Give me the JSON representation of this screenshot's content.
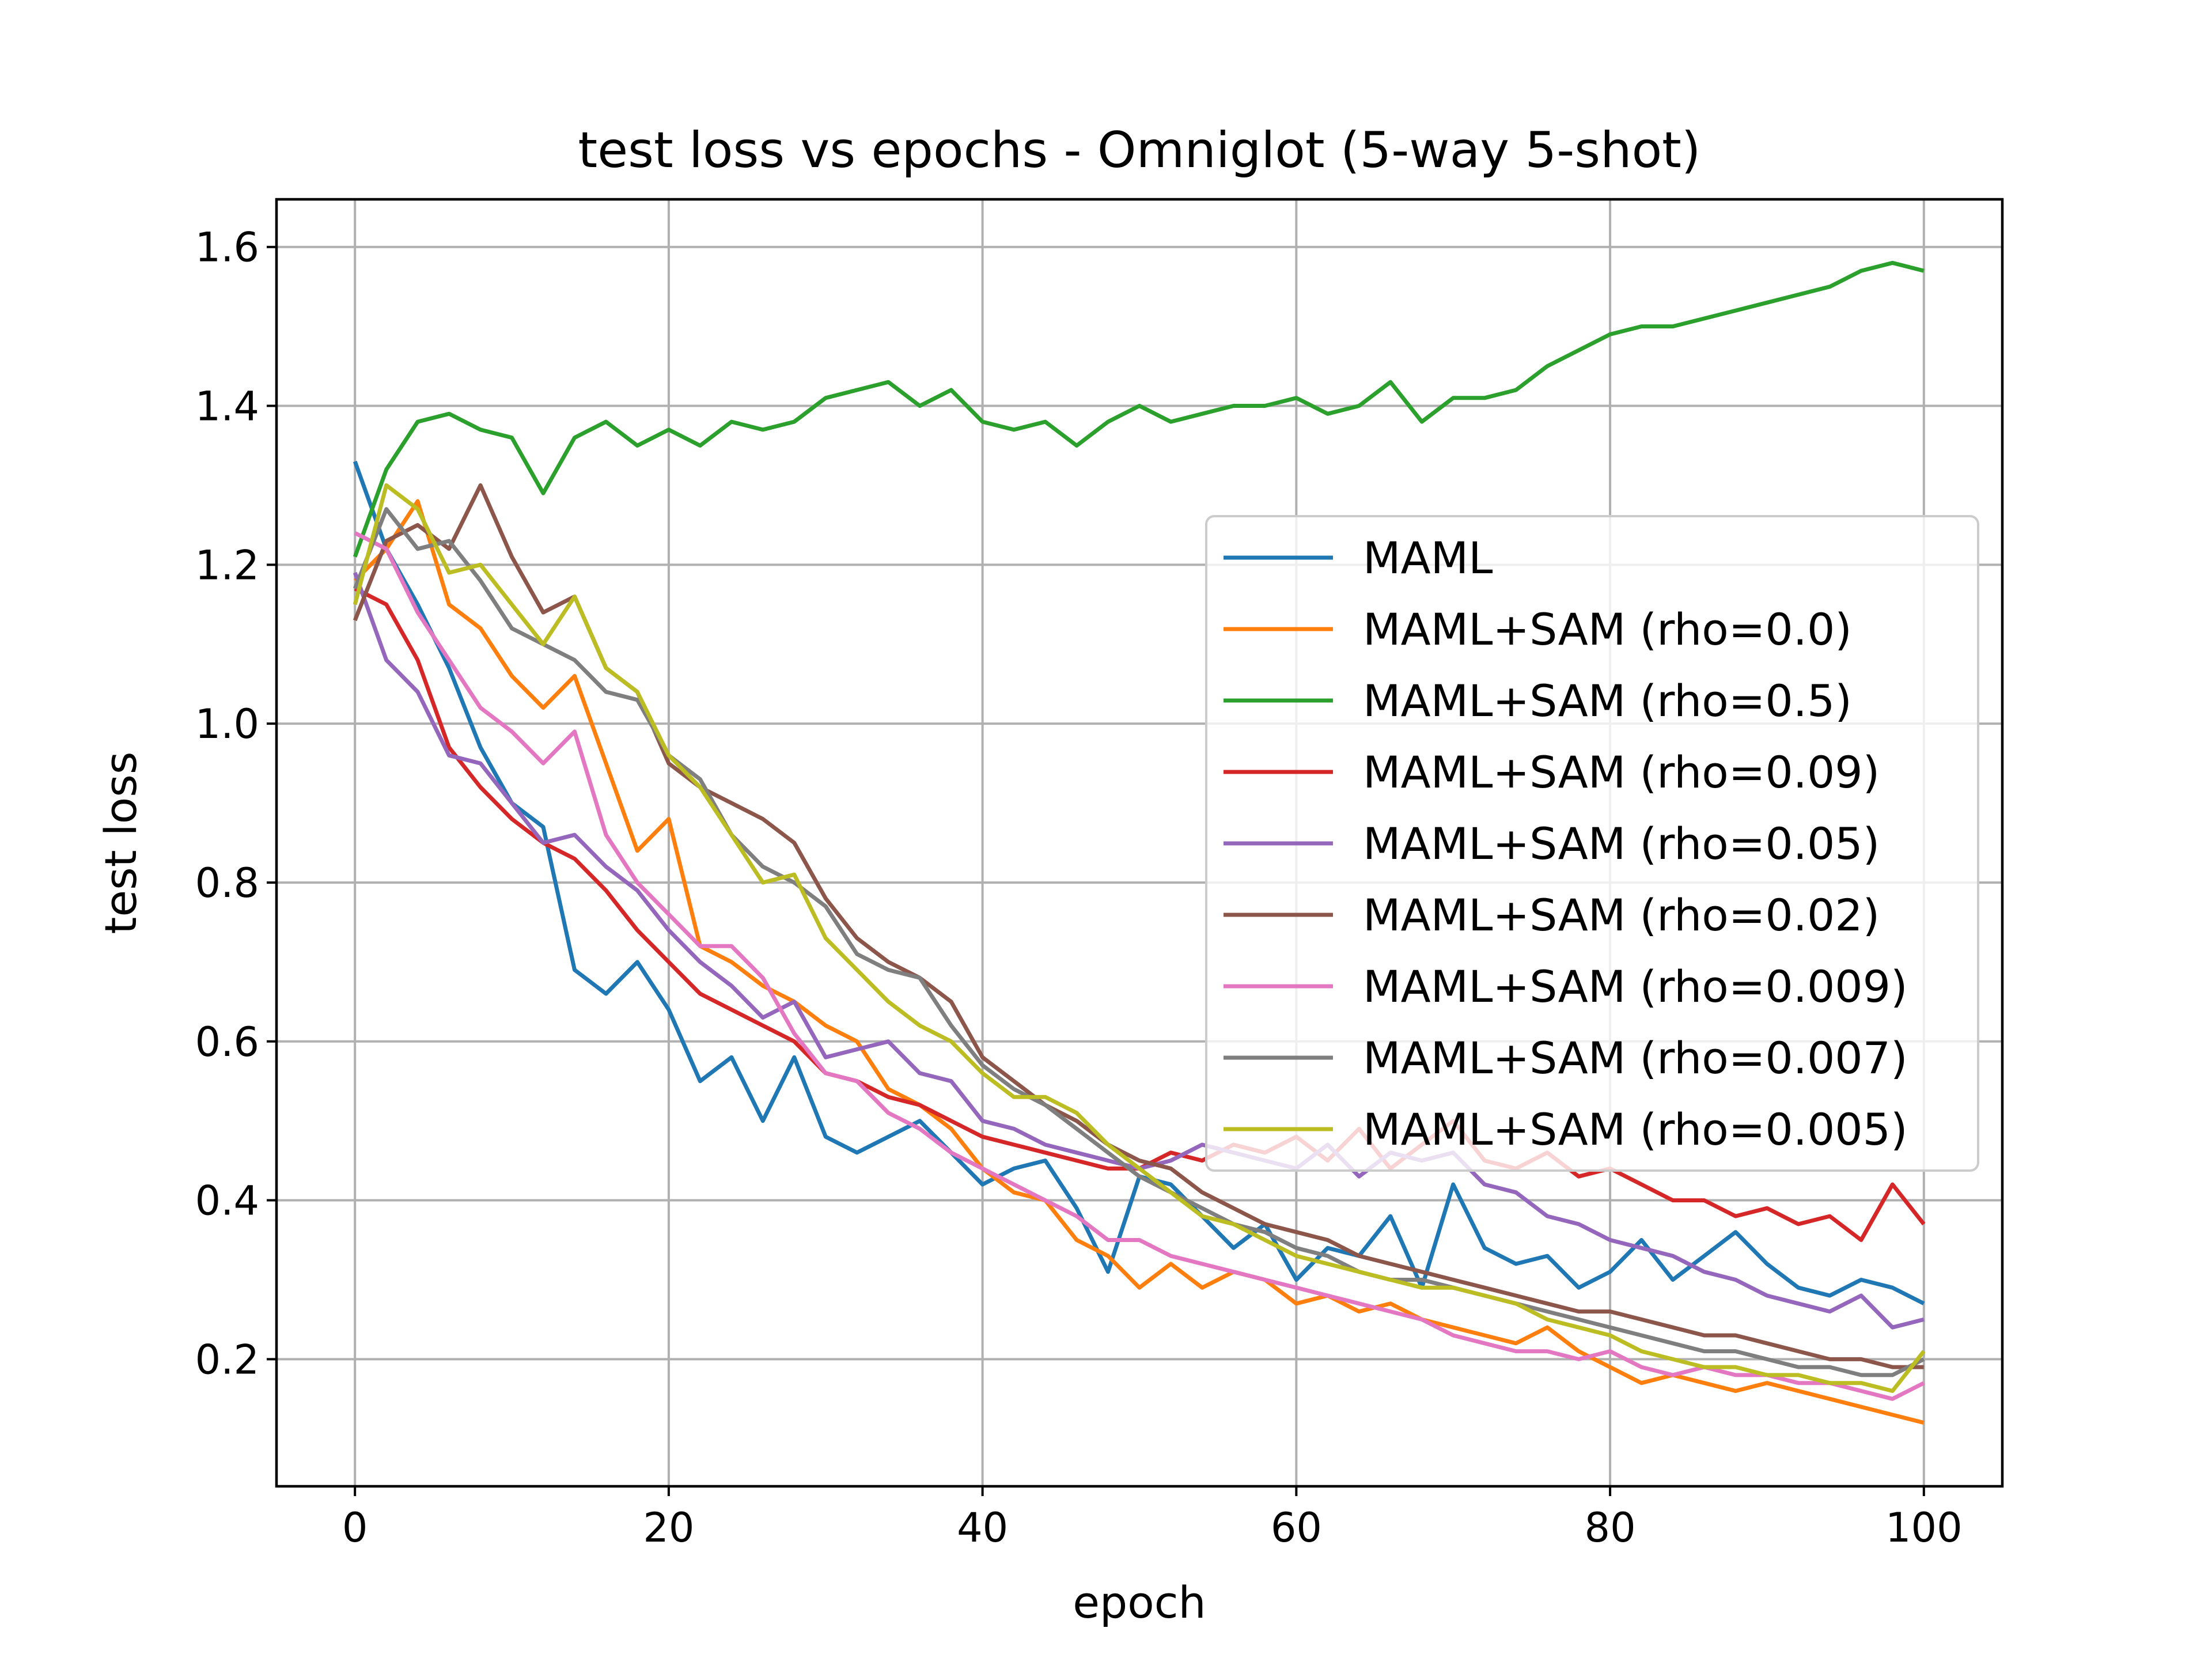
{
  "chart_data": {
    "type": "line",
    "title": "test loss vs epochs - Omniglot (5-way 5-shot)",
    "xlabel": "epoch",
    "ylabel": "test loss",
    "xlim": [
      -5,
      105
    ],
    "ylim": [
      0.04,
      1.66
    ],
    "xticks": [
      0,
      20,
      40,
      60,
      80,
      100
    ],
    "yticks": [
      0.2,
      0.4,
      0.6,
      0.8,
      1.0,
      1.2,
      1.4,
      1.6
    ],
    "xtick_labels": [
      "0",
      "20",
      "40",
      "60",
      "80",
      "100"
    ],
    "ytick_labels": [
      "0.2",
      "0.4",
      "0.6",
      "0.8",
      "1.0",
      "1.2",
      "1.4",
      "1.6"
    ],
    "grid": true,
    "legend_position": "center-right",
    "series": [
      {
        "name": "MAML",
        "color": "#1f77b4",
        "x": [
          0,
          2,
          4,
          6,
          8,
          10,
          12,
          14,
          16,
          18,
          20,
          22,
          24,
          26,
          28,
          30,
          32,
          34,
          36,
          38,
          40,
          42,
          44,
          46,
          48,
          50,
          52,
          54,
          56,
          58,
          60,
          62,
          64,
          66,
          68,
          70,
          72,
          74,
          76,
          78,
          80,
          82,
          84,
          86,
          88,
          90,
          92,
          94,
          96,
          98,
          100
        ],
        "y": [
          1.33,
          1.22,
          1.15,
          1.07,
          0.97,
          0.9,
          0.87,
          0.69,
          0.66,
          0.7,
          0.64,
          0.55,
          0.58,
          0.5,
          0.58,
          0.48,
          0.46,
          0.48,
          0.5,
          0.46,
          0.42,
          0.44,
          0.45,
          0.39,
          0.31,
          0.43,
          0.42,
          0.38,
          0.34,
          0.37,
          0.3,
          0.34,
          0.33,
          0.38,
          0.29,
          0.42,
          0.34,
          0.32,
          0.33,
          0.29,
          0.31,
          0.35,
          0.3,
          0.33,
          0.36,
          0.32,
          0.29,
          0.28,
          0.3,
          0.29,
          0.27
        ]
      },
      {
        "name": "MAML+SAM (rho=0.0)",
        "color": "#ff7f0e",
        "x": [
          0,
          2,
          4,
          6,
          8,
          10,
          12,
          14,
          16,
          18,
          20,
          22,
          24,
          26,
          28,
          30,
          32,
          34,
          36,
          38,
          40,
          42,
          44,
          46,
          48,
          50,
          52,
          54,
          56,
          58,
          60,
          62,
          64,
          66,
          68,
          70,
          72,
          74,
          76,
          78,
          80,
          82,
          84,
          86,
          88,
          90,
          92,
          94,
          96,
          98,
          100
        ],
        "y": [
          1.18,
          1.22,
          1.28,
          1.15,
          1.12,
          1.06,
          1.02,
          1.06,
          0.95,
          0.84,
          0.88,
          0.72,
          0.7,
          0.67,
          0.65,
          0.62,
          0.6,
          0.54,
          0.52,
          0.49,
          0.44,
          0.41,
          0.4,
          0.35,
          0.33,
          0.29,
          0.32,
          0.29,
          0.31,
          0.3,
          0.27,
          0.28,
          0.26,
          0.27,
          0.25,
          0.24,
          0.23,
          0.22,
          0.24,
          0.21,
          0.19,
          0.17,
          0.18,
          0.17,
          0.16,
          0.17,
          0.16,
          0.15,
          0.14,
          0.13,
          0.12
        ]
      },
      {
        "name": "MAML+SAM (rho=0.5)",
        "color": "#2ca02c",
        "x": [
          0,
          2,
          4,
          6,
          8,
          10,
          12,
          14,
          16,
          18,
          20,
          22,
          24,
          26,
          28,
          30,
          32,
          34,
          36,
          38,
          40,
          42,
          44,
          46,
          48,
          50,
          52,
          54,
          56,
          58,
          60,
          62,
          64,
          66,
          68,
          70,
          72,
          74,
          76,
          78,
          80,
          82,
          84,
          86,
          88,
          90,
          92,
          94,
          96,
          98,
          100
        ],
        "y": [
          1.21,
          1.32,
          1.38,
          1.39,
          1.37,
          1.36,
          1.29,
          1.36,
          1.38,
          1.35,
          1.37,
          1.35,
          1.38,
          1.37,
          1.38,
          1.41,
          1.42,
          1.43,
          1.4,
          1.42,
          1.38,
          1.37,
          1.38,
          1.35,
          1.38,
          1.4,
          1.38,
          1.39,
          1.4,
          1.4,
          1.41,
          1.39,
          1.4,
          1.43,
          1.38,
          1.41,
          1.41,
          1.42,
          1.45,
          1.47,
          1.49,
          1.5,
          1.5,
          1.51,
          1.52,
          1.53,
          1.54,
          1.55,
          1.57,
          1.58,
          1.57
        ]
      },
      {
        "name": "MAML+SAM (rho=0.09)",
        "color": "#d62728",
        "x": [
          0,
          2,
          4,
          6,
          8,
          10,
          12,
          14,
          16,
          18,
          20,
          22,
          24,
          26,
          28,
          30,
          32,
          34,
          36,
          38,
          40,
          42,
          44,
          46,
          48,
          50,
          52,
          54,
          56,
          58,
          60,
          62,
          64,
          66,
          68,
          70,
          72,
          74,
          76,
          78,
          80,
          82,
          84,
          86,
          88,
          90,
          92,
          94,
          96,
          98,
          100
        ],
        "y": [
          1.17,
          1.15,
          1.08,
          0.97,
          0.92,
          0.88,
          0.85,
          0.83,
          0.79,
          0.74,
          0.7,
          0.66,
          0.64,
          0.62,
          0.6,
          0.56,
          0.55,
          0.53,
          0.52,
          0.5,
          0.48,
          0.47,
          0.46,
          0.45,
          0.44,
          0.44,
          0.46,
          0.45,
          0.47,
          0.46,
          0.48,
          0.45,
          0.49,
          0.44,
          0.47,
          0.5,
          0.45,
          0.44,
          0.46,
          0.43,
          0.44,
          0.42,
          0.4,
          0.4,
          0.38,
          0.39,
          0.37,
          0.38,
          0.35,
          0.42,
          0.37
        ]
      },
      {
        "name": "MAML+SAM (rho=0.05)",
        "color": "#9467bd",
        "x": [
          0,
          2,
          4,
          6,
          8,
          10,
          12,
          14,
          16,
          18,
          20,
          22,
          24,
          26,
          28,
          30,
          32,
          34,
          36,
          38,
          40,
          42,
          44,
          46,
          48,
          50,
          52,
          54,
          56,
          58,
          60,
          62,
          64,
          66,
          68,
          70,
          72,
          74,
          76,
          78,
          80,
          82,
          84,
          86,
          88,
          90,
          92,
          94,
          96,
          98,
          100
        ],
        "y": [
          1.19,
          1.08,
          1.04,
          0.96,
          0.95,
          0.9,
          0.85,
          0.86,
          0.82,
          0.79,
          0.74,
          0.7,
          0.67,
          0.63,
          0.65,
          0.58,
          0.59,
          0.6,
          0.56,
          0.55,
          0.5,
          0.49,
          0.47,
          0.46,
          0.45,
          0.44,
          0.45,
          0.47,
          0.46,
          0.45,
          0.44,
          0.47,
          0.43,
          0.46,
          0.45,
          0.46,
          0.42,
          0.41,
          0.38,
          0.37,
          0.35,
          0.34,
          0.33,
          0.31,
          0.3,
          0.28,
          0.27,
          0.26,
          0.28,
          0.24,
          0.25
        ]
      },
      {
        "name": "MAML+SAM (rho=0.02)",
        "color": "#8c564b",
        "x": [
          0,
          2,
          4,
          6,
          8,
          10,
          12,
          14,
          16,
          18,
          20,
          22,
          24,
          26,
          28,
          30,
          32,
          34,
          36,
          38,
          40,
          42,
          44,
          46,
          48,
          50,
          52,
          54,
          56,
          58,
          60,
          62,
          64,
          66,
          68,
          70,
          72,
          74,
          76,
          78,
          80,
          82,
          84,
          86,
          88,
          90,
          92,
          94,
          96,
          98,
          100
        ],
        "y": [
          1.13,
          1.23,
          1.25,
          1.22,
          1.3,
          1.21,
          1.14,
          1.16,
          1.07,
          1.04,
          0.95,
          0.92,
          0.9,
          0.88,
          0.85,
          0.78,
          0.73,
          0.7,
          0.68,
          0.65,
          0.58,
          0.55,
          0.52,
          0.5,
          0.47,
          0.45,
          0.44,
          0.41,
          0.39,
          0.37,
          0.36,
          0.35,
          0.33,
          0.32,
          0.31,
          0.3,
          0.29,
          0.28,
          0.27,
          0.26,
          0.26,
          0.25,
          0.24,
          0.23,
          0.23,
          0.22,
          0.21,
          0.2,
          0.2,
          0.19,
          0.19
        ]
      },
      {
        "name": "MAML+SAM (rho=0.009)",
        "color": "#e377c2",
        "x": [
          0,
          2,
          4,
          6,
          8,
          10,
          12,
          14,
          16,
          18,
          20,
          22,
          24,
          26,
          28,
          30,
          32,
          34,
          36,
          38,
          40,
          42,
          44,
          46,
          48,
          50,
          52,
          54,
          56,
          58,
          60,
          62,
          64,
          66,
          68,
          70,
          72,
          74,
          76,
          78,
          80,
          82,
          84,
          86,
          88,
          90,
          92,
          94,
          96,
          98,
          100
        ],
        "y": [
          1.24,
          1.22,
          1.14,
          1.08,
          1.02,
          0.99,
          0.95,
          0.99,
          0.86,
          0.8,
          0.76,
          0.72,
          0.72,
          0.68,
          0.61,
          0.56,
          0.55,
          0.51,
          0.49,
          0.46,
          0.44,
          0.42,
          0.4,
          0.38,
          0.35,
          0.35,
          0.33,
          0.32,
          0.31,
          0.3,
          0.29,
          0.28,
          0.27,
          0.26,
          0.25,
          0.23,
          0.22,
          0.21,
          0.21,
          0.2,
          0.21,
          0.19,
          0.18,
          0.19,
          0.18,
          0.18,
          0.17,
          0.17,
          0.16,
          0.15,
          0.17
        ]
      },
      {
        "name": "MAML+SAM (rho=0.007)",
        "color": "#7f7f7f",
        "x": [
          0,
          2,
          4,
          6,
          8,
          10,
          12,
          14,
          16,
          18,
          20,
          22,
          24,
          26,
          28,
          30,
          32,
          34,
          36,
          38,
          40,
          42,
          44,
          46,
          48,
          50,
          52,
          54,
          56,
          58,
          60,
          62,
          64,
          66,
          68,
          70,
          72,
          74,
          76,
          78,
          80,
          82,
          84,
          86,
          88,
          90,
          92,
          94,
          96,
          98,
          100
        ],
        "y": [
          1.17,
          1.27,
          1.22,
          1.23,
          1.18,
          1.12,
          1.1,
          1.08,
          1.04,
          1.03,
          0.96,
          0.93,
          0.86,
          0.82,
          0.8,
          0.77,
          0.71,
          0.69,
          0.68,
          0.62,
          0.57,
          0.54,
          0.52,
          0.49,
          0.46,
          0.43,
          0.41,
          0.39,
          0.37,
          0.36,
          0.34,
          0.33,
          0.31,
          0.3,
          0.3,
          0.29,
          0.28,
          0.27,
          0.26,
          0.25,
          0.24,
          0.23,
          0.22,
          0.21,
          0.21,
          0.2,
          0.19,
          0.19,
          0.18,
          0.18,
          0.2
        ]
      },
      {
        "name": "MAML+SAM (rho=0.005)",
        "color": "#bcbd22",
        "x": [
          0,
          2,
          4,
          6,
          8,
          10,
          12,
          14,
          16,
          18,
          20,
          22,
          24,
          26,
          28,
          30,
          32,
          34,
          36,
          38,
          40,
          42,
          44,
          46,
          48,
          50,
          52,
          54,
          56,
          58,
          60,
          62,
          64,
          66,
          68,
          70,
          72,
          74,
          76,
          78,
          80,
          82,
          84,
          86,
          88,
          90,
          92,
          94,
          96,
          98,
          100
        ],
        "y": [
          1.15,
          1.3,
          1.27,
          1.19,
          1.2,
          1.15,
          1.1,
          1.16,
          1.07,
          1.04,
          0.96,
          0.92,
          0.86,
          0.8,
          0.81,
          0.73,
          0.69,
          0.65,
          0.62,
          0.6,
          0.56,
          0.53,
          0.53,
          0.51,
          0.47,
          0.44,
          0.41,
          0.38,
          0.37,
          0.35,
          0.33,
          0.32,
          0.31,
          0.3,
          0.29,
          0.29,
          0.28,
          0.27,
          0.25,
          0.24,
          0.23,
          0.21,
          0.2,
          0.19,
          0.19,
          0.18,
          0.18,
          0.17,
          0.17,
          0.16,
          0.21
        ]
      }
    ]
  }
}
